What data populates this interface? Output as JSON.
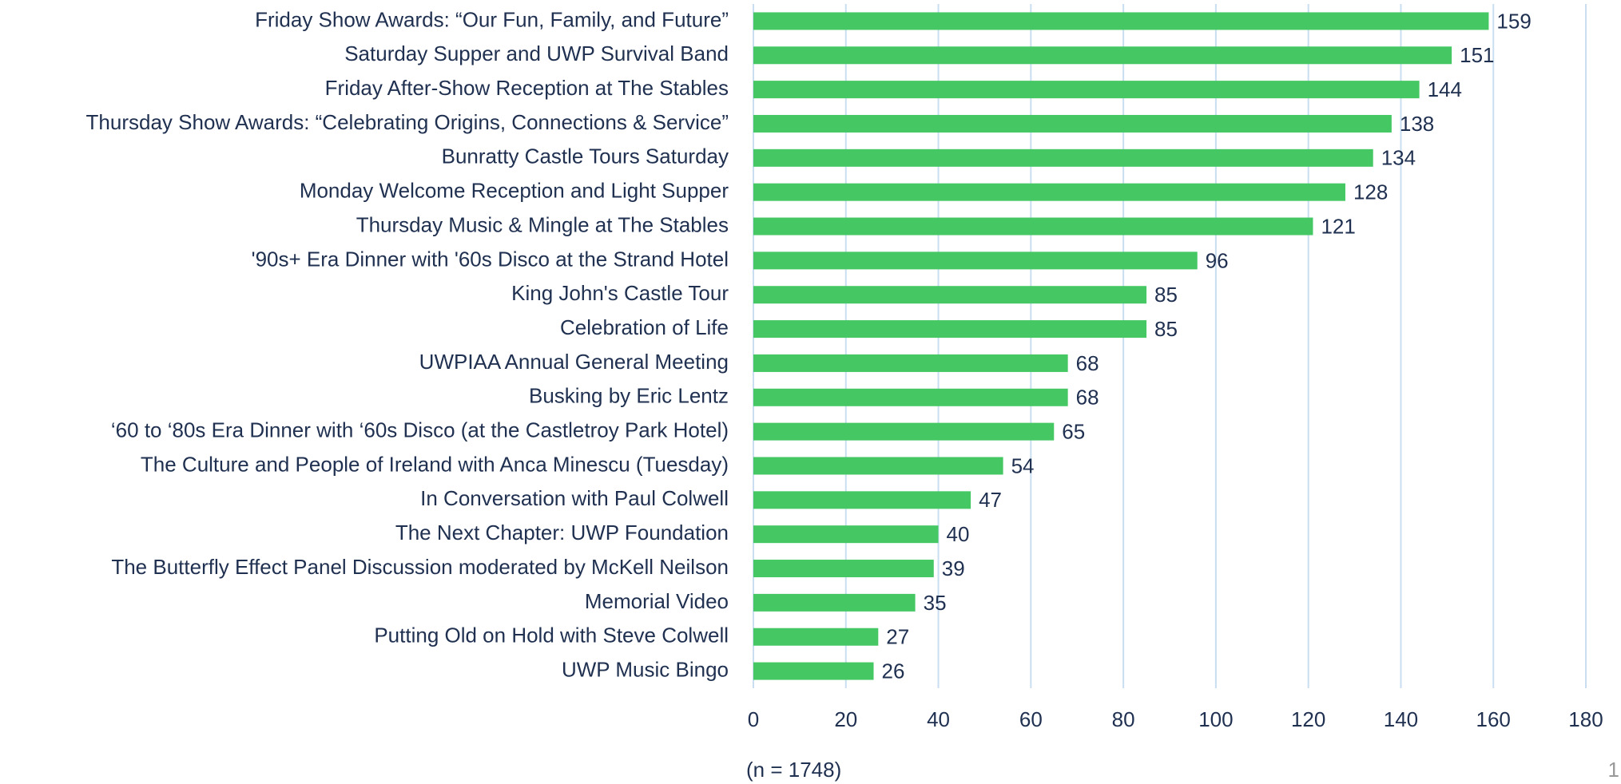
{
  "chart_data": {
    "type": "bar",
    "orientation": "horizontal",
    "categories": [
      "Friday Show Awards: “Our Fun, Family, and Future”",
      "Saturday Supper and UWP Survival Band",
      "Friday After-Show Reception at The Stables",
      "Thursday Show Awards: “Celebrating Origins, Connections & Service”",
      "Bunratty Castle Tours Saturday",
      "Monday Welcome Reception and Light Supper",
      "Thursday Music & Mingle at The Stables",
      "'90s+ Era Dinner with '60s Disco at the Strand Hotel",
      "King John's Castle Tour",
      "Celebration of Life",
      "UWPIAA Annual General Meeting",
      "Busking by Eric Lentz",
      "‘60 to ‘80s Era Dinner with ‘60s Disco (at the Castletroy Park Hotel)",
      "The Culture and People of Ireland with Anca Minescu (Tuesday)",
      "In Conversation with Paul Colwell",
      "The Next Chapter: UWP Foundation",
      "The Butterfly Effect Panel Discussion moderated by McKell Neilson",
      "Memorial Video",
      "Putting Old on Hold with Steve Colwell",
      "UWP Music Bingo"
    ],
    "values": [
      159,
      151,
      144,
      138,
      134,
      128,
      121,
      96,
      85,
      85,
      68,
      68,
      65,
      54,
      47,
      40,
      39,
      35,
      27,
      26
    ],
    "color": "#45c864",
    "xlim": [
      0,
      180
    ],
    "xticks": [
      0,
      20,
      40,
      60,
      80,
      100,
      120,
      140,
      160,
      180
    ],
    "grid": true,
    "note": "(n = 1748)",
    "page_number": "1"
  }
}
